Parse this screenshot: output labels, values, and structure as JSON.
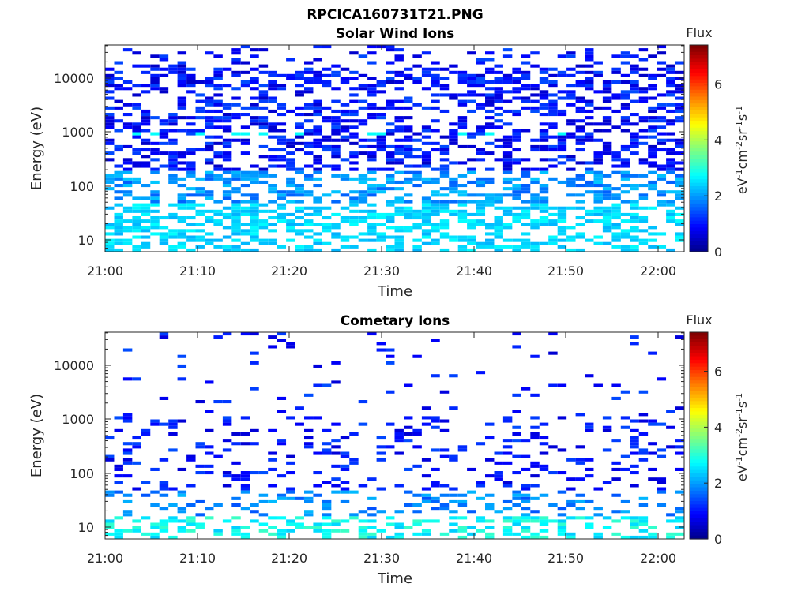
{
  "figure_title": "RPCICA160731T21.PNG",
  "chart_data": [
    {
      "type": "heatmap",
      "title": "Solar Wind Ions",
      "xlabel": "Time",
      "ylabel": "Energy (eV)",
      "x_ticks": [
        "21:00",
        "21:10",
        "21:20",
        "21:30",
        "21:40",
        "21:50",
        "22:00"
      ],
      "y_scale": "log",
      "y_ticks": [
        "10",
        "100",
        "1000",
        "10000"
      ],
      "colorbar": {
        "label": "Flux",
        "unit": "eV-1cm-2sr-1s-1",
        "ticks": [
          "0",
          "2",
          "4",
          "6"
        ],
        "range": [
          0,
          7.4
        ],
        "colormap": "jet"
      }
    },
    {
      "type": "heatmap",
      "title": "Cometary Ions",
      "xlabel": "Time",
      "ylabel": "Energy (eV)",
      "x_ticks": [
        "21:00",
        "21:10",
        "21:20",
        "21:30",
        "21:40",
        "21:50",
        "22:00"
      ],
      "y_scale": "log",
      "y_ticks": [
        "10",
        "100",
        "1000",
        "10000"
      ],
      "colorbar": {
        "label": "Flux",
        "unit": "eV-1cm-2sr-1s-1",
        "ticks": [
          "0",
          "2",
          "4",
          "6"
        ],
        "range": [
          0,
          7.4
        ],
        "colormap": "jet"
      }
    }
  ]
}
